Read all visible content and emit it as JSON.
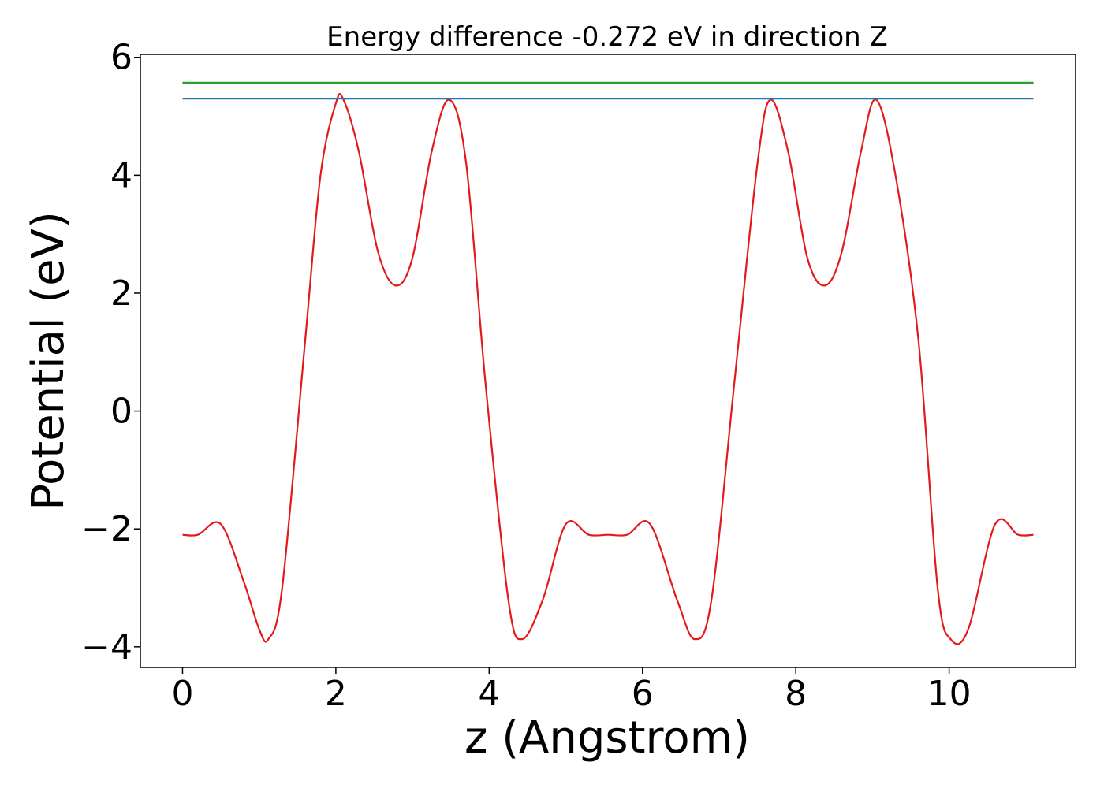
{
  "chart_data": {
    "type": "line",
    "title": "Energy difference -0.272 eV in direction Z",
    "xlabel": "z (Angstrom)",
    "ylabel": "Potential (eV)",
    "xlim": [
      -0.55,
      11.65
    ],
    "ylim": [
      -4.35,
      6.05
    ],
    "x_ticks": [
      0,
      2,
      4,
      6,
      8,
      10
    ],
    "y_ticks": [
      -4,
      -2,
      0,
      2,
      4,
      6
    ],
    "x_tick_labels": [
      "0",
      "2",
      "4",
      "6",
      "8",
      "10"
    ],
    "y_tick_labels": [
      "−4",
      "−2",
      "0",
      "2",
      "4",
      "6"
    ],
    "grid": false,
    "legend": "none",
    "series": [
      {
        "color": "#e31a1c",
        "x": [
          0.0,
          0.2,
          0.5,
          0.8,
          1.0,
          1.12,
          1.3,
          1.6,
          1.8,
          2.0,
          2.1,
          2.3,
          2.55,
          2.78,
          3.0,
          3.25,
          3.48,
          3.7,
          3.95,
          4.25,
          4.43,
          4.7,
          5.0,
          5.3,
          5.55,
          5.8,
          6.1,
          6.45,
          6.68,
          6.9,
          7.2,
          7.5,
          7.67,
          7.9,
          8.15,
          8.38,
          8.6,
          8.85,
          9.05,
          9.3,
          9.6,
          9.85,
          10.02,
          10.25,
          10.6,
          10.9,
          11.1
        ],
        "y": [
          -2.1,
          -2.1,
          -1.92,
          -2.9,
          -3.7,
          -3.87,
          -3.0,
          1.2,
          4.0,
          5.22,
          5.28,
          4.4,
          2.7,
          2.13,
          2.6,
          4.4,
          5.28,
          4.2,
          0.5,
          -3.2,
          -3.87,
          -3.2,
          -1.92,
          -2.1,
          -2.1,
          -2.1,
          -1.92,
          -3.2,
          -3.87,
          -3.2,
          0.5,
          4.2,
          5.28,
          4.4,
          2.6,
          2.13,
          2.7,
          4.4,
          5.28,
          4.0,
          1.2,
          -3.0,
          -3.87,
          -3.7,
          -1.92,
          -2.1,
          -2.1
        ]
      },
      {
        "color": "#1f77b4",
        "x": [
          0.0,
          11.1
        ],
        "y": [
          5.3,
          5.3
        ]
      },
      {
        "color": "#2ca02c",
        "x": [
          0.0,
          11.1
        ],
        "y": [
          5.57,
          5.57
        ]
      }
    ]
  }
}
